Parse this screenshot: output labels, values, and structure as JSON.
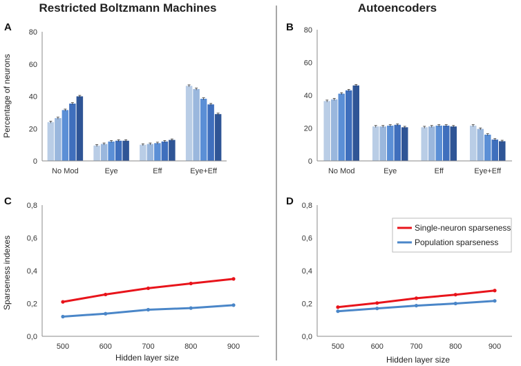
{
  "titles": {
    "left": "Restricted Boltzmann Machines",
    "right": "Autoencoders"
  },
  "panel_letters": {
    "A": "A",
    "B": "B",
    "C": "C",
    "D": "D"
  },
  "colors": {
    "bar_shades": [
      "#b9cde6",
      "#9ab7dd",
      "#5b8fd6",
      "#3f6fbd",
      "#2f5596",
      "#1f3a6e"
    ],
    "single_neuron": "#e8141b",
    "population": "#4a86c8",
    "axis": "#888888",
    "divider": "#8a8a8a"
  },
  "chart_data": [
    {
      "id": "A",
      "type": "bar",
      "title": "Restricted Boltzmann Machines",
      "ylabel": "Percentage of neurons",
      "xlabel": "",
      "ylim": [
        0,
        80
      ],
      "yticks": [
        "0",
        "20",
        "40",
        "60",
        "80"
      ],
      "categories": [
        "No Mod",
        "Eye",
        "Eff",
        "Eye+Eff"
      ],
      "groups": [
        [
          24,
          26.5,
          31.5,
          35.5,
          40
        ],
        [
          9.5,
          10.5,
          12,
          12.5,
          12.5
        ],
        [
          10,
          10.5,
          11,
          12,
          13
        ],
        [
          46.5,
          44.5,
          38.5,
          35,
          29
        ]
      ]
    },
    {
      "id": "B",
      "type": "bar",
      "title": "Autoencoders",
      "ylabel": "",
      "xlabel": "",
      "ylim": [
        0,
        80
      ],
      "yticks": [
        "0",
        "20",
        "40",
        "60",
        "80"
      ],
      "categories": [
        "No Mod",
        "Eye",
        "Eff",
        "Eye+Eff"
      ],
      "groups": [
        [
          36.5,
          37.5,
          41,
          43,
          46
        ],
        [
          21,
          21,
          21.5,
          22,
          20.5
        ],
        [
          20.5,
          21,
          21.5,
          21.5,
          21
        ],
        [
          21.5,
          19.5,
          16,
          13,
          12
        ]
      ]
    },
    {
      "id": "C",
      "type": "line",
      "ylabel": "Sparseness  indexes",
      "xlabel": "Hidden layer size",
      "ylim": [
        0,
        0.8
      ],
      "yticks": [
        "0,0",
        "0,2",
        "0,4",
        "0,6",
        "0,8"
      ],
      "x": [
        500,
        600,
        700,
        800,
        900
      ],
      "xticks": [
        "500",
        "600",
        "700",
        "800",
        "900"
      ],
      "series": [
        {
          "name": "Single-neuron sparseness",
          "values": [
            0.21,
            0.255,
            0.293,
            0.322,
            0.35
          ]
        },
        {
          "name": "Population sparseness",
          "values": [
            0.12,
            0.138,
            0.162,
            0.172,
            0.19
          ]
        }
      ]
    },
    {
      "id": "D",
      "type": "line",
      "ylabel": "",
      "xlabel": "Hidden layer size",
      "ylim": [
        0,
        0.8
      ],
      "yticks": [
        "0,0",
        "0,2",
        "0,4",
        "0,6",
        "0,8"
      ],
      "x": [
        500,
        600,
        700,
        800,
        900
      ],
      "xticks": [
        "500",
        "600",
        "700",
        "800",
        "900"
      ],
      "legend": {
        "position": "upper-right",
        "entries": [
          "Single-neuron sparseness",
          "Population sparseness"
        ]
      },
      "series": [
        {
          "name": "Single-neuron sparseness",
          "values": [
            0.178,
            0.203,
            0.232,
            0.254,
            0.279
          ]
        },
        {
          "name": "Population sparseness",
          "values": [
            0.153,
            0.17,
            0.187,
            0.2,
            0.216
          ]
        }
      ]
    }
  ]
}
